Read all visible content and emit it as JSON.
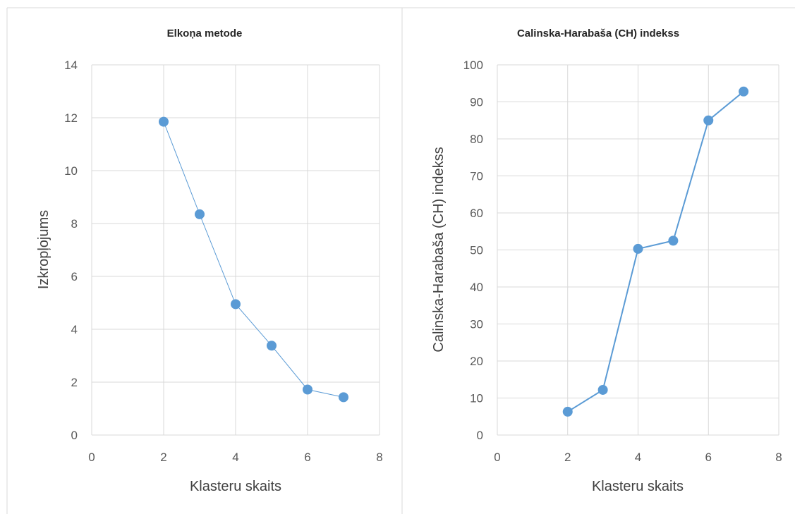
{
  "colors": {
    "series": "#5b9bd5",
    "grid": "#d9d9d9",
    "text": "#595959"
  },
  "chart_data": [
    {
      "type": "scatter",
      "title": "Elkoņa metode",
      "xlabel": "Klasteru skaits",
      "ylabel": "Izkropļojums",
      "xlim": [
        0,
        8
      ],
      "ylim": [
        0,
        14
      ],
      "xticks": [
        0,
        2,
        4,
        6,
        8
      ],
      "yticks": [
        0,
        2,
        4,
        6,
        8,
        10,
        12,
        14
      ],
      "grid": true,
      "series": [
        {
          "x": [
            2,
            3,
            4,
            5,
            6,
            7
          ],
          "values": [
            11.85,
            8.35,
            4.95,
            3.38,
            1.72,
            1.43
          ]
        }
      ]
    },
    {
      "type": "scatter",
      "title": "Calinska-Harabaša (CH) indekss",
      "xlabel": "Klasteru skaits",
      "ylabel": "Calinska-Harabaša (CH) indekss",
      "xlim": [
        0,
        8
      ],
      "ylim": [
        0,
        100
      ],
      "xticks": [
        0,
        2,
        4,
        6,
        8
      ],
      "yticks": [
        0,
        10,
        20,
        30,
        40,
        50,
        60,
        70,
        80,
        90,
        100
      ],
      "grid": true,
      "series": [
        {
          "x": [
            2,
            3,
            4,
            5,
            6,
            7
          ],
          "values": [
            6.3,
            12.2,
            50.3,
            52.5,
            85.0,
            92.8
          ]
        }
      ]
    }
  ]
}
